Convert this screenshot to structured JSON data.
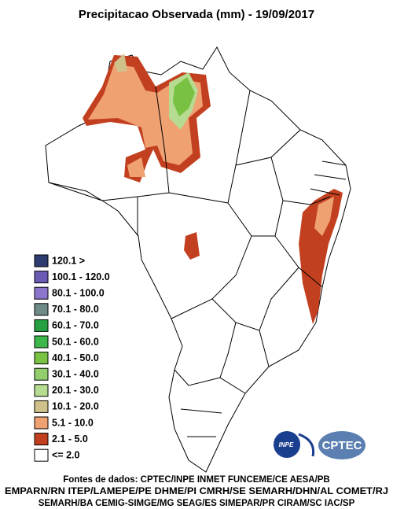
{
  "title": "Precipitacao Observada (mm) - 19/09/2017",
  "legend": [
    {
      "label": "120.1 >",
      "color": "#2e3b6e"
    },
    {
      "label": "100.1 - 120.0",
      "color": "#6b5bb5"
    },
    {
      "label": "80.1 - 100.0",
      "color": "#8c76cb"
    },
    {
      "label": "70.1 - 80.0",
      "color": "#6f8b88"
    },
    {
      "label": "60.1 - 70.0",
      "color": "#26a043"
    },
    {
      "label": "50.1 - 60.0",
      "color": "#3db64b"
    },
    {
      "label": "40.1 - 50.0",
      "color": "#79c143"
    },
    {
      "label": "30.1 - 40.0",
      "color": "#92cf6c"
    },
    {
      "label": "20.1 - 30.0",
      "color": "#b6dc92"
    },
    {
      "label": "10.1 - 20.0",
      "color": "#d0c08a"
    },
    {
      "label": "5.1 - 10.0",
      "color": "#f0a172"
    },
    {
      "label": "2.1 - 5.0",
      "color": "#c2401f"
    },
    {
      "label": "<= 2.0",
      "color": "#ffffff"
    }
  ],
  "logos": [
    "INPE",
    "CPTEC"
  ],
  "sources": [
    "Fontes de dados: CPTEC/INPE INMET FUNCEME/CE AESA/PB",
    "EMPARN/RN ITEP/LAMEPE/PE DHME/PI CMRH/SE SEMARH/DHN/AL COMET/RJ",
    "SEMARH/BA CEMIG-SIMGE/MG SEAG/ES SIMEPAR/PR CIRAM/SC IAC/SP"
  ]
}
